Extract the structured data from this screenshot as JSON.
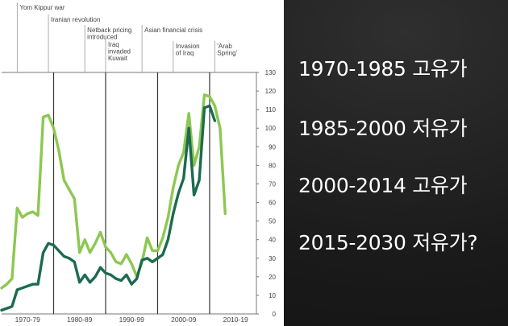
{
  "chart_data": {
    "type": "line",
    "x_tick_labels": [
      "1970-79",
      "1980-89",
      "1990-99",
      "2000-09",
      "2010-19"
    ],
    "y_ticks": [
      0,
      10,
      20,
      30,
      40,
      50,
      60,
      70,
      80,
      90,
      100,
      110,
      120,
      130
    ],
    "ylim": [
      0,
      130
    ],
    "xlim": [
      1970,
      2019
    ],
    "y_axis_side": "right",
    "grid": false,
    "decade_dividers": [
      1980,
      1990,
      2000,
      2010
    ],
    "events": [
      {
        "label": "Yom Kippur war",
        "year": 1973
      },
      {
        "label": "Iranian revolution",
        "year": 1979
      },
      {
        "label": "Netback pricing introduced",
        "year": 1986
      },
      {
        "label": "Iraq invaded Kuwait",
        "year": 1990
      },
      {
        "label": "Asian financial crisis",
        "year": 1997
      },
      {
        "label": "Invasion of Iraq",
        "year": 2003
      },
      {
        "label": "'Arab Spring'",
        "year": 2011
      }
    ],
    "series": [
      {
        "color": "#8cc851",
        "points": [
          [
            1970,
            14
          ],
          [
            1971,
            16
          ],
          [
            1972,
            19
          ],
          [
            1973,
            57
          ],
          [
            1974,
            52
          ],
          [
            1975,
            54
          ],
          [
            1976,
            55
          ],
          [
            1977,
            53
          ],
          [
            1978,
            106
          ],
          [
            1979,
            107
          ],
          [
            1980,
            100
          ],
          [
            1981,
            88
          ],
          [
            1982,
            72
          ],
          [
            1983,
            67
          ],
          [
            1984,
            62
          ],
          [
            1985,
            33
          ],
          [
            1986,
            40
          ],
          [
            1987,
            33
          ],
          [
            1988,
            38
          ],
          [
            1989,
            44
          ],
          [
            1990,
            36
          ],
          [
            1991,
            33
          ],
          [
            1992,
            28
          ],
          [
            1993,
            27
          ],
          [
            1994,
            32
          ],
          [
            1995,
            27
          ],
          [
            1996,
            20
          ],
          [
            1997,
            28
          ],
          [
            1998,
            41
          ],
          [
            1999,
            34
          ],
          [
            2000,
            34
          ],
          [
            2001,
            41
          ],
          [
            2002,
            52
          ],
          [
            2003,
            68
          ],
          [
            2004,
            80
          ],
          [
            2005,
            87
          ],
          [
            2006,
            108
          ],
          [
            2007,
            80
          ],
          [
            2008,
            90
          ],
          [
            2009,
            118
          ],
          [
            2010,
            117
          ],
          [
            2011,
            112
          ],
          [
            2012,
            100
          ],
          [
            2013,
            54
          ]
        ]
      },
      {
        "color": "#1c6b4e",
        "points": [
          [
            1970,
            2
          ],
          [
            1971,
            3
          ],
          [
            1972,
            4
          ],
          [
            1973,
            13
          ],
          [
            1974,
            14
          ],
          [
            1975,
            15
          ],
          [
            1976,
            16
          ],
          [
            1977,
            16
          ],
          [
            1978,
            33
          ],
          [
            1979,
            38
          ],
          [
            1980,
            37
          ],
          [
            1981,
            34
          ],
          [
            1982,
            31
          ],
          [
            1983,
            30
          ],
          [
            1984,
            28
          ],
          [
            1985,
            17
          ],
          [
            1986,
            21
          ],
          [
            1987,
            17
          ],
          [
            1988,
            20
          ],
          [
            1989,
            25
          ],
          [
            1990,
            22
          ],
          [
            1991,
            21
          ],
          [
            1992,
            19
          ],
          [
            1993,
            18
          ],
          [
            1994,
            21
          ],
          [
            1995,
            16
          ],
          [
            1996,
            19
          ],
          [
            1997,
            29
          ],
          [
            1998,
            30
          ],
          [
            1999,
            28
          ],
          [
            2000,
            30
          ],
          [
            2001,
            32
          ],
          [
            2002,
            40
          ],
          [
            2003,
            54
          ],
          [
            2004,
            65
          ],
          [
            2005,
            73
          ],
          [
            2006,
            100
          ],
          [
            2007,
            64
          ],
          [
            2008,
            72
          ],
          [
            2009,
            111
          ],
          [
            2010,
            112
          ],
          [
            2011,
            104
          ]
        ]
      }
    ]
  },
  "eras": [
    {
      "label": "1970-1985 고유가"
    },
    {
      "label": "1985-2000 저유가"
    },
    {
      "label": "2000-2014 고유가"
    },
    {
      "label": "2015-2030 저유가?"
    }
  ]
}
